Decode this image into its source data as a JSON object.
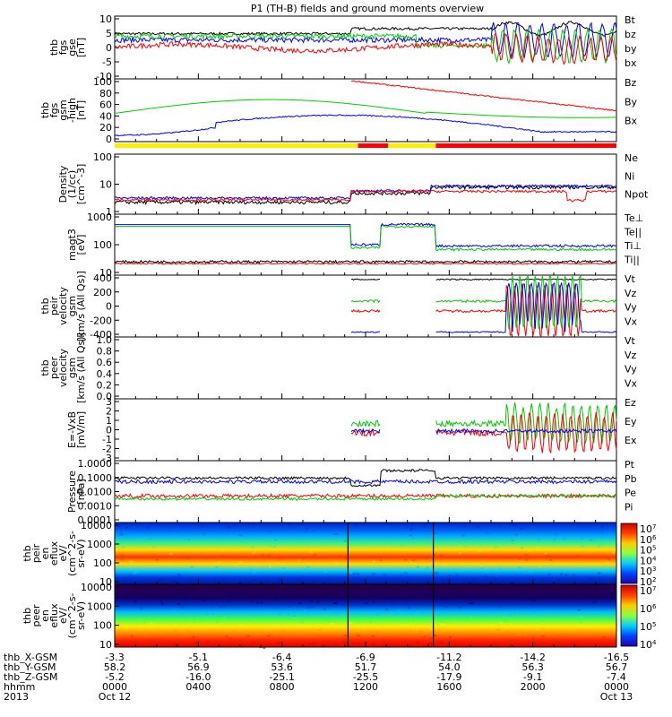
{
  "chart_data": {
    "type": "line",
    "title": "P1 (TH-B) fields and ground moments overview",
    "x_range": [
      "2013-10-12 00:00",
      "2013-10-13 00:00"
    ],
    "panels": [
      {
        "id": "fgs_gse",
        "ylabel": [
          "thb",
          "fgs",
          "gse",
          "[nT]"
        ],
        "ylim": [
          -10,
          10
        ],
        "ticks": [
          "10",
          "5",
          "0",
          "-5",
          "-10"
        ],
        "legend": [
          {
            "label": "Bt",
            "color": "#000000"
          },
          {
            "label": "bz",
            "color": "#ff0000"
          },
          {
            "label": "by",
            "color": "#00cc00"
          },
          {
            "label": "bx",
            "color": "#0000ff"
          }
        ]
      },
      {
        "id": "fgs_gsm",
        "ylabel": [
          "thb",
          "fgs",
          "gsm",
          "-high",
          "[nT]"
        ],
        "ylim": [
          -5,
          100
        ],
        "ticks": [
          "100",
          "80",
          "60",
          "40",
          "20",
          "0"
        ],
        "legend": [
          {
            "label": "Bz",
            "color": "#ff0000"
          },
          {
            "label": "By",
            "color": "#00cc00"
          },
          {
            "label": "Bx",
            "color": "#0000ff"
          }
        ]
      },
      {
        "id": "density",
        "ylabel": [
          "Density",
          "(1/cc)",
          "[cm^-3]"
        ],
        "scale": "log",
        "ylim": [
          0.8,
          200
        ],
        "ticks": [
          "100",
          "10",
          "1"
        ],
        "legend": [
          {
            "label": "Ne",
            "color": "#ff0000"
          },
          {
            "label": "Ni",
            "color": "#000000"
          },
          {
            "label": "Npot",
            "color": "#0000ff"
          }
        ]
      },
      {
        "id": "temperature",
        "ylabel": [
          "magt3",
          "[eV]"
        ],
        "scale": "log",
        "ylim": [
          5,
          8000
        ],
        "ticks": [
          "1000",
          "100",
          "10"
        ],
        "legend": [
          {
            "label": "Te⊥",
            "color": "#ff0000"
          },
          {
            "label": "Te||",
            "color": "#000000"
          },
          {
            "label": "Ti⊥",
            "color": "#0000ff"
          },
          {
            "label": "Ti||",
            "color": "#00cc00"
          }
        ]
      },
      {
        "id": "peir_velocity",
        "ylabel": [
          "thb",
          "peir",
          "velocity",
          "gsm",
          "[km/s (All Qs)]"
        ],
        "ylim": [
          -400,
          400
        ],
        "ticks": [
          "400",
          "200",
          "0",
          "-200",
          "-400"
        ],
        "legend": [
          {
            "label": "Vt",
            "color": "#000000"
          },
          {
            "label": "Vz",
            "color": "#ff0000"
          },
          {
            "label": "Vy",
            "color": "#00cc00"
          },
          {
            "label": "Vx",
            "color": "#0000ff"
          }
        ]
      },
      {
        "id": "peer_velocity",
        "ylabel": [
          "thb",
          "peer",
          "velocity",
          "gsm",
          "[km/s (All Qs)]"
        ],
        "ylim": [
          0,
          1
        ],
        "ticks": [
          "1.0",
          "0.8",
          "0.6",
          "0.4",
          "0.2",
          "0.0"
        ],
        "legend": [
          {
            "label": "Vt",
            "color": "#000000"
          },
          {
            "label": "Vz",
            "color": "#ff0000"
          },
          {
            "label": "Vy",
            "color": "#00cc00"
          },
          {
            "label": "Vx",
            "color": "#0000ff"
          }
        ]
      },
      {
        "id": "efield",
        "ylabel": [
          "E=-VxB",
          "[mV/m]"
        ],
        "ylim": [
          -3,
          3
        ],
        "ticks": [
          "3",
          "2",
          "1",
          "0",
          "-1",
          "-2",
          "-3"
        ],
        "legend": [
          {
            "label": "Ez",
            "color": "#ff0000"
          },
          {
            "label": "Ey",
            "color": "#00cc00"
          },
          {
            "label": "Ex",
            "color": "#0000ff"
          }
        ]
      },
      {
        "id": "pressure",
        "ylabel": [
          "Pressure",
          "[nPa]"
        ],
        "scale": "log",
        "ylim": [
          0.0007,
          1.5
        ],
        "ticks": [
          "1.0000",
          "0.1000",
          "0.0100",
          "0.0010",
          "0.0001"
        ],
        "legend": [
          {
            "label": "Pt",
            "color": "#000000"
          },
          {
            "label": "Pb",
            "color": "#ff0000"
          },
          {
            "label": "Pe",
            "color": "#00cc00"
          },
          {
            "label": "Pi",
            "color": "#0000ff"
          }
        ]
      },
      {
        "id": "peir_spec",
        "ylabel": [
          "thb",
          "peir",
          "en",
          "eflux",
          "eV/",
          "(cm^2-s-",
          "sr-eV)"
        ],
        "scale": "log",
        "ticks": [
          "10000",
          "1000",
          "100",
          "10"
        ],
        "colorbar": [
          "10^7",
          "10^6",
          "10^5",
          "10^4",
          "10^3",
          "10^2"
        ]
      },
      {
        "id": "peer_spec",
        "ylabel": [
          "thb",
          "peer",
          "en",
          "eflux",
          "eV/",
          "(cm^2-s-",
          "sr-eV)"
        ],
        "scale": "log",
        "ticks": [
          "10000",
          "1000",
          "100",
          "10"
        ],
        "colorbar": [
          "10^7",
          "10^6",
          "10^5",
          "10^4"
        ]
      }
    ],
    "footer": {
      "rows": [
        {
          "label": "thb_X-GSM",
          "values": [
            "-3.3",
            "-5.1",
            "-6.4",
            "-6.9",
            "-11.2",
            "-14.2",
            "-16.5"
          ]
        },
        {
          "label": "thb_Y-GSM",
          "values": [
            "58.2",
            "56.9",
            "53.6",
            "51.7",
            "54.0",
            "56.3",
            "56.7"
          ]
        },
        {
          "label": "thb_Z-GSM",
          "values": [
            "-5.2",
            "-16.0",
            "-25.1",
            "-25.5",
            "-17.9",
            "-9.1",
            "-7.4"
          ]
        },
        {
          "label": "hhmm",
          "values": [
            "0000",
            "0400",
            "0800",
            "1200",
            "1600",
            "2000",
            "0000"
          ]
        },
        {
          "label": "2013",
          "values": [
            "Oct 12",
            "",
            "",
            "",
            "",
            "",
            "Oct 13"
          ]
        }
      ]
    },
    "mode_bar": [
      {
        "from": 0,
        "to": 0.485,
        "color": "#ffee00"
      },
      {
        "from": 0.485,
        "to": 0.545,
        "color": "#ff0000"
      },
      {
        "from": 0.545,
        "to": 0.64,
        "color": "#ffee00"
      },
      {
        "from": 0.64,
        "to": 1,
        "color": "#ff0000"
      }
    ]
  }
}
